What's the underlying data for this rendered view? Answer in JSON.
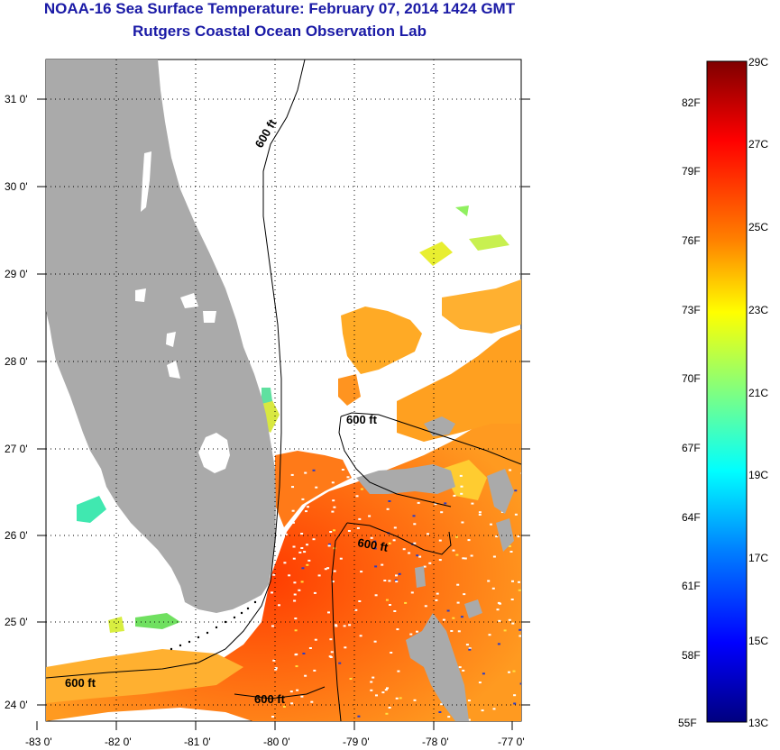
{
  "header": {
    "title": "NOAA-16 Sea Surface Temperature:  February 07, 2014 1424 GMT",
    "subtitle": "Rutgers Coastal Ocean Observation Lab"
  },
  "map": {
    "lat_labels": [
      "31 0'",
      "30 0'",
      "29 0'",
      "28 0'",
      "27 0'",
      "26 0'",
      "25 0'",
      "24 0'"
    ],
    "lon_labels": [
      "-83 0'",
      "-82 0'",
      "-81 0'",
      "-80 0'",
      "-79 0'",
      "-78 0'",
      "-77 0'"
    ],
    "contour_label": "600 ft",
    "colors": {
      "land": "#aaaaaa",
      "grid": "#000000"
    }
  },
  "colorbar": {
    "celsius_labels": [
      "29C",
      "27C",
      "25C",
      "23C",
      "21C",
      "19C",
      "17C",
      "15C",
      "13C"
    ],
    "fahrenheit_labels": [
      "82F",
      "79F",
      "76F",
      "73F",
      "70F",
      "67F",
      "64F",
      "61F",
      "58F",
      "55F"
    ],
    "gradient_colors": [
      "#7f0000",
      "#ff0000",
      "#ff8000",
      "#ffff00",
      "#80ff80",
      "#00ffff",
      "#0080ff",
      "#0000ff",
      "#00007f"
    ]
  }
}
